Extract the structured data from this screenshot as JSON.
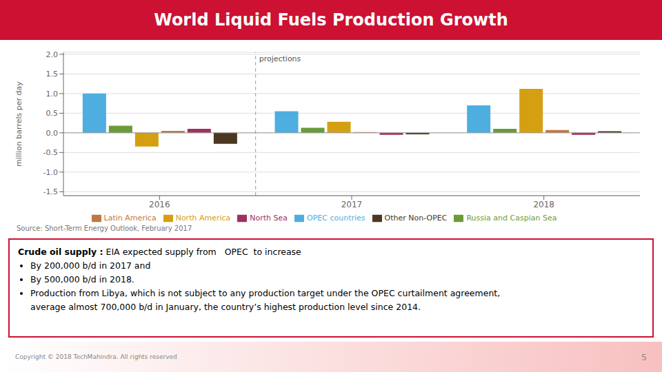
{
  "chart_data": {
    "type": "bar",
    "title": "World Liquid Fuels Production Growth",
    "ylabel": "million barrels per day",
    "categories": [
      "2016",
      "2017",
      "2018"
    ],
    "series": [
      {
        "name": "OPEC countries",
        "color": "#4DAEDF",
        "values": [
          1.0,
          0.55,
          0.7
        ]
      },
      {
        "name": "Russia and Caspian Sea",
        "color": "#6B9A3A",
        "values": [
          0.18,
          0.13,
          0.1
        ]
      },
      {
        "name": "North America",
        "color": "#D4A012",
        "values": [
          -0.35,
          0.28,
          1.12
        ]
      },
      {
        "name": "Latin America",
        "color": "#C07840",
        "values": [
          0.05,
          0.02,
          0.07
        ]
      },
      {
        "name": "North Sea",
        "color": "#A03060",
        "values": [
          0.1,
          -0.05,
          -0.05
        ]
      },
      {
        "name": "Other Non-OPEC",
        "color": "#4A3820",
        "values": [
          -0.28,
          -0.04,
          0.04
        ]
      }
    ],
    "ylim": [
      -1.6,
      2.05
    ],
    "yticks": [
      -1.5,
      {
        "value": -1.0,
        "label": "-1.0"
      },
      -0.5,
      {
        "value": 0.0,
        "label": "0.0"
      },
      0.5,
      {
        "value": 1.0,
        "label": "1.0"
      },
      1.5,
      {
        "value": 2.0,
        "label": "2.0"
      }
    ],
    "grid": true,
    "legend": "bottom",
    "annotations": [
      "projections",
      "Source: Short-Term Energy Outlook, February 2017",
      "Crude oil supply :",
      " EIA expected supply from   OPEC  to increase",
      "By 200,000 b/d in 2017 and",
      "By 500,000 b/d in 2018.",
      "Production from Libya, which is not subject to any production target under the OPEC curtailment agreement,",
      "average almost 700,000 b/d in January, the country’s highest production level since 2014.",
      "Copyright © 2018 TechMahindra. All rights reserved",
      "5"
    ]
  }
}
